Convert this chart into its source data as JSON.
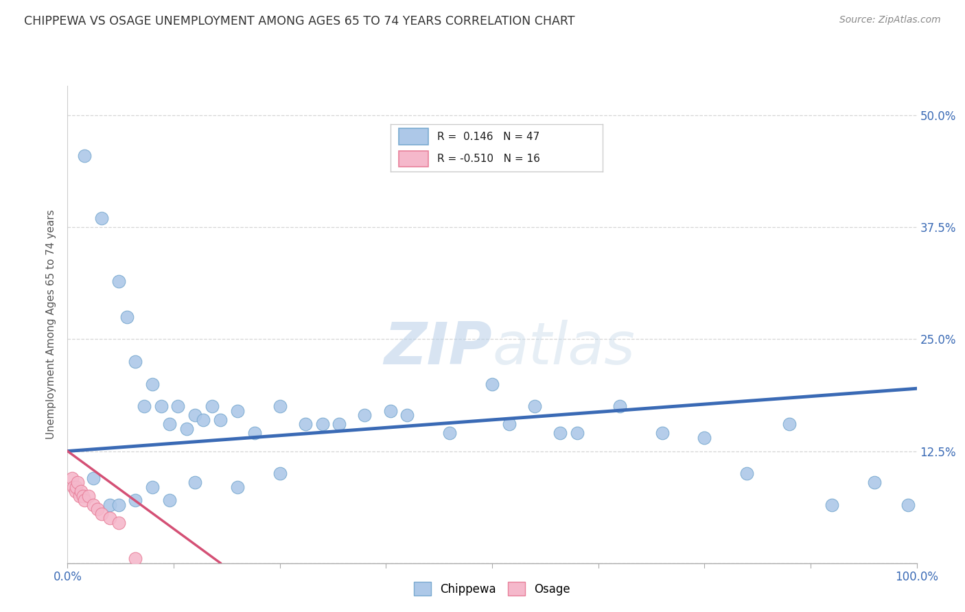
{
  "title": "CHIPPEWA VS OSAGE UNEMPLOYMENT AMONG AGES 65 TO 74 YEARS CORRELATION CHART",
  "source": "Source: ZipAtlas.com",
  "ylabel": "Unemployment Among Ages 65 to 74 years",
  "xlim": [
    0.0,
    1.0
  ],
  "ylim": [
    0.0,
    0.5333
  ],
  "chippewa_color": "#adc8e8",
  "chippewa_edge": "#7aaad0",
  "osage_color": "#f5b8cb",
  "osage_edge": "#e8809a",
  "trendline_chippewa_color": "#3a6ab5",
  "trendline_osage_color": "#d45075",
  "watermark_color": "#d0dff0",
  "legend_chippewa_label": "Chippewa",
  "legend_osage_label": "Osage",
  "R_chippewa": 0.146,
  "N_chippewa": 47,
  "R_osage": -0.51,
  "N_osage": 16,
  "chippewa_x": [
    0.02,
    0.04,
    0.06,
    0.07,
    0.08,
    0.09,
    0.1,
    0.11,
    0.12,
    0.13,
    0.14,
    0.15,
    0.16,
    0.17,
    0.18,
    0.2,
    0.22,
    0.25,
    0.28,
    0.3,
    0.32,
    0.35,
    0.38,
    0.4,
    0.45,
    0.5,
    0.52,
    0.55,
    0.58,
    0.6,
    0.65,
    0.7,
    0.75,
    0.8,
    0.85,
    0.9,
    0.95,
    0.99,
    0.03,
    0.05,
    0.06,
    0.08,
    0.1,
    0.12,
    0.15,
    0.2,
    0.25
  ],
  "chippewa_y": [
    0.455,
    0.385,
    0.315,
    0.275,
    0.225,
    0.175,
    0.2,
    0.175,
    0.155,
    0.175,
    0.15,
    0.165,
    0.16,
    0.175,
    0.16,
    0.17,
    0.145,
    0.175,
    0.155,
    0.155,
    0.155,
    0.165,
    0.17,
    0.165,
    0.145,
    0.2,
    0.155,
    0.175,
    0.145,
    0.145,
    0.175,
    0.145,
    0.14,
    0.1,
    0.155,
    0.065,
    0.09,
    0.065,
    0.095,
    0.065,
    0.065,
    0.07,
    0.085,
    0.07,
    0.09,
    0.085,
    0.1
  ],
  "osage_x": [
    0.005,
    0.007,
    0.009,
    0.01,
    0.012,
    0.014,
    0.016,
    0.018,
    0.02,
    0.025,
    0.03,
    0.035,
    0.04,
    0.05,
    0.06,
    0.08
  ],
  "osage_y": [
    0.095,
    0.085,
    0.08,
    0.085,
    0.09,
    0.075,
    0.08,
    0.075,
    0.07,
    0.075,
    0.065,
    0.06,
    0.055,
    0.05,
    0.045,
    0.005
  ],
  "trend_c_x0": 0.0,
  "trend_c_x1": 1.0,
  "trend_c_y0": 0.125,
  "trend_c_y1": 0.195,
  "trend_o_x0": 0.0,
  "trend_o_x1": 0.18,
  "trend_o_y0": 0.125,
  "trend_o_y1": 0.0
}
